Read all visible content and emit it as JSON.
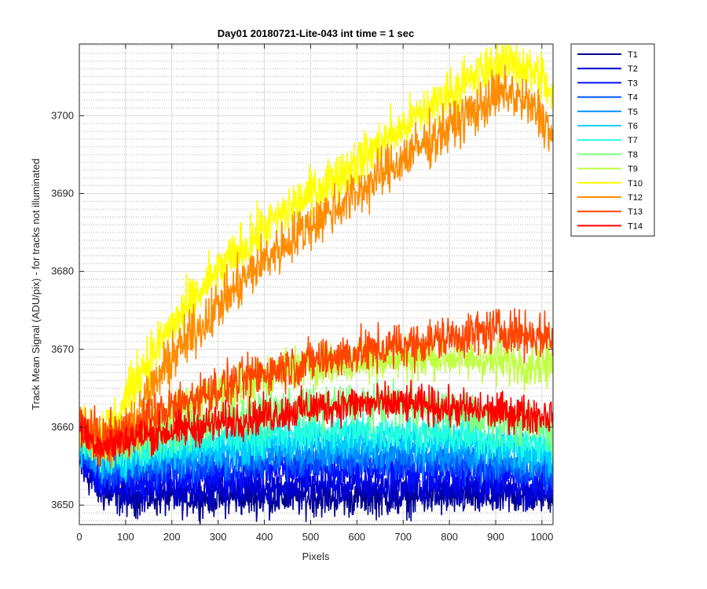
{
  "chart_data": {
    "type": "line",
    "title": "Day01 20180721-Lite-043 int time = 1 sec",
    "xlabel": "Pixels",
    "ylabel": "Track Mean Signal (ADU/pix) - for tracks not illuminated",
    "xlim": [
      0,
      1024
    ],
    "ylim": [
      3647.5,
      3709.2
    ],
    "xticks": [
      0,
      100,
      200,
      300,
      400,
      500,
      600,
      700,
      800,
      900,
      1000
    ],
    "yticks": [
      3650,
      3660,
      3670,
      3680,
      3690,
      3700
    ],
    "grid": "major and minor",
    "legend_position": "outside top-right",
    "series": [
      {
        "name": "T1",
        "color": "#00008F",
        "noise": 1.2,
        "x": [
          0,
          50,
          100,
          200,
          300,
          400,
          500,
          600,
          700,
          800,
          900,
          1024
        ],
        "y": [
          3655,
          3651.5,
          3651,
          3651,
          3651,
          3651,
          3651,
          3651,
          3651,
          3651,
          3651,
          3651.5
        ]
      },
      {
        "name": "T2",
        "color": "#0000D4",
        "noise": 1.2,
        "x": [
          0,
          50,
          100,
          200,
          300,
          400,
          500,
          600,
          700,
          800,
          900,
          1024
        ],
        "y": [
          3656,
          3652.5,
          3652,
          3652,
          3652.5,
          3652.5,
          3652.5,
          3652.5,
          3652.5,
          3652.5,
          3652,
          3652
        ]
      },
      {
        "name": "T3",
        "color": "#0010FF",
        "noise": 1.2,
        "x": [
          0,
          50,
          100,
          200,
          300,
          400,
          500,
          600,
          700,
          800,
          900,
          1024
        ],
        "y": [
          3656.5,
          3653.5,
          3653.5,
          3654,
          3654,
          3654.5,
          3654.5,
          3654.5,
          3654.5,
          3654.5,
          3654,
          3653.5
        ]
      },
      {
        "name": "T4",
        "color": "#0050FF",
        "noise": 1.2,
        "x": [
          0,
          50,
          100,
          200,
          300,
          400,
          500,
          600,
          700,
          800,
          900,
          1024
        ],
        "y": [
          3657,
          3654.5,
          3654.5,
          3655,
          3655.5,
          3655.5,
          3656,
          3656,
          3656,
          3655.5,
          3655,
          3654.5
        ]
      },
      {
        "name": "T5",
        "color": "#0090FF",
        "noise": 1.2,
        "x": [
          0,
          50,
          100,
          200,
          300,
          400,
          500,
          600,
          700,
          800,
          900,
          1024
        ],
        "y": [
          3657.5,
          3655,
          3655.5,
          3656,
          3656.5,
          3657,
          3657,
          3657,
          3657,
          3656.5,
          3656,
          3655.5
        ]
      },
      {
        "name": "T6",
        "color": "#00D0FF",
        "noise": 1.2,
        "x": [
          0,
          50,
          100,
          200,
          300,
          400,
          500,
          600,
          700,
          800,
          900,
          1024
        ],
        "y": [
          3658,
          3656,
          3656,
          3657,
          3657.5,
          3658,
          3658.5,
          3658.5,
          3658.5,
          3658,
          3657.5,
          3656.5
        ]
      },
      {
        "name": "T7",
        "color": "#20FFDF",
        "noise": 1.2,
        "x": [
          0,
          50,
          100,
          200,
          300,
          400,
          500,
          600,
          700,
          800,
          900,
          1024
        ],
        "y": [
          3658.5,
          3656.5,
          3657,
          3658,
          3658.5,
          3659,
          3659.5,
          3659.5,
          3659.5,
          3659,
          3658.5,
          3657.5
        ]
      },
      {
        "name": "T8",
        "color": "#7FFF80",
        "noise": 1.3,
        "x": [
          0,
          50,
          100,
          200,
          300,
          400,
          500,
          600,
          700,
          800,
          900,
          1024
        ],
        "y": [
          3659,
          3657.5,
          3658,
          3659.5,
          3661,
          3662,
          3662.5,
          3663,
          3663,
          3662,
          3661,
          3659.5
        ]
      },
      {
        "name": "T9",
        "color": "#BFFF40",
        "noise": 1.4,
        "x": [
          0,
          50,
          100,
          200,
          300,
          400,
          500,
          600,
          700,
          800,
          900,
          1024
        ],
        "y": [
          3660,
          3658,
          3659,
          3662,
          3664.5,
          3666.5,
          3668,
          3668.5,
          3669,
          3669,
          3668.5,
          3668
        ]
      },
      {
        "name": "T10",
        "color": "#FFFF00",
        "noise": 1.6,
        "x": [
          0,
          40,
          80,
          130,
          200,
          300,
          400,
          500,
          600,
          700,
          800,
          900,
          940,
          1000,
          1024
        ],
        "y": [
          3661,
          3659,
          3661,
          3667,
          3673,
          3680,
          3685.5,
          3690,
          3694,
          3698.5,
          3703,
          3706.5,
          3707,
          3705,
          3702
        ]
      },
      {
        "name": "T12",
        "color": "#FF8C00",
        "noise": 1.6,
        "x": [
          0,
          50,
          100,
          150,
          200,
          300,
          400,
          500,
          600,
          700,
          800,
          900,
          930,
          1000,
          1024
        ],
        "y": [
          3660.5,
          3658.5,
          3659,
          3664,
          3669,
          3675.5,
          3681.5,
          3686,
          3690,
          3694.5,
          3698.5,
          3702.5,
          3703,
          3700,
          3697
        ]
      },
      {
        "name": "T13",
        "color": "#FF4500",
        "noise": 1.4,
        "x": [
          0,
          50,
          100,
          200,
          300,
          400,
          500,
          600,
          700,
          800,
          900,
          1024
        ],
        "y": [
          3660.5,
          3658.5,
          3659.5,
          3662.5,
          3665,
          3667,
          3668.5,
          3669.5,
          3670.5,
          3671.5,
          3672.5,
          3671.5
        ]
      },
      {
        "name": "T14",
        "color": "#FF0000",
        "noise": 1.2,
        "x": [
          0,
          50,
          100,
          200,
          300,
          400,
          500,
          600,
          700,
          800,
          900,
          1024
        ],
        "y": [
          3659.5,
          3657.5,
          3658.5,
          3659.5,
          3660.5,
          3661.5,
          3662.5,
          3663,
          3663,
          3662.5,
          3662,
          3661.5
        ]
      }
    ]
  }
}
